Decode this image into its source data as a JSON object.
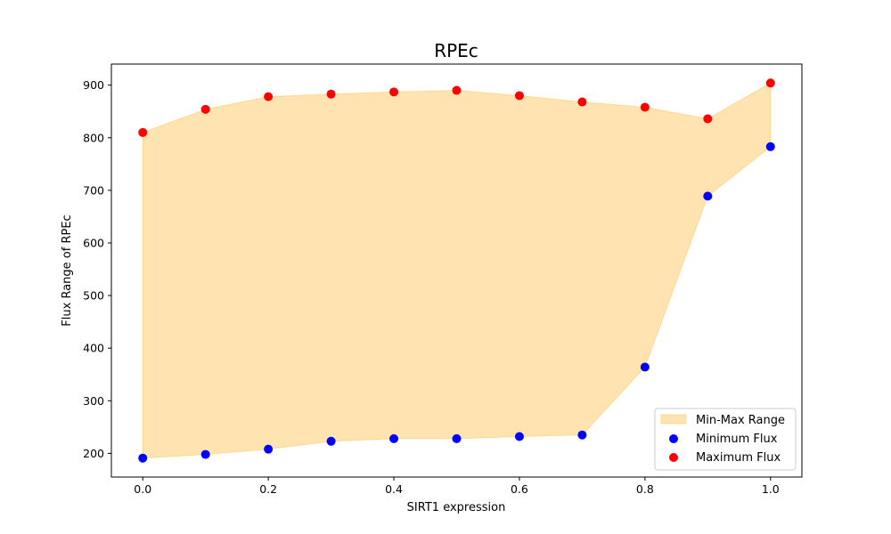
{
  "chart_data": {
    "type": "scatter",
    "title": "RPEc",
    "xlabel": "SIRT1 expression",
    "ylabel": "Flux Range of RPEc",
    "xlim": [
      -0.05,
      1.05
    ],
    "ylim": [
      155,
      940
    ],
    "xticks": [
      0.0,
      0.2,
      0.4,
      0.6,
      0.8,
      1.0
    ],
    "xtick_labels": [
      "0.0",
      "0.2",
      "0.4",
      "0.6",
      "0.8",
      "1.0"
    ],
    "yticks": [
      200,
      300,
      400,
      500,
      600,
      700,
      800,
      900
    ],
    "ytick_labels": [
      "200",
      "300",
      "400",
      "500",
      "600",
      "700",
      "800",
      "900"
    ],
    "x": [
      0.0,
      0.1,
      0.2,
      0.3,
      0.4,
      0.5,
      0.6,
      0.7,
      0.8,
      0.9,
      1.0
    ],
    "series": [
      {
        "name": "Minimum Flux",
        "kind": "scatter",
        "color": "#0000ff",
        "values": [
          191,
          198,
          208,
          223,
          228,
          228,
          232,
          235,
          364,
          689,
          783
        ]
      },
      {
        "name": "Maximum Flux",
        "kind": "scatter",
        "color": "#ff0000",
        "values": [
          810,
          854,
          878,
          883,
          887,
          890,
          880,
          868,
          858,
          836,
          904
        ]
      }
    ],
    "fill": {
      "name": "Min-Max Range",
      "color": "#ffa500",
      "opacity": 0.3
    },
    "legend_position": "lower-right",
    "grid": false
  }
}
